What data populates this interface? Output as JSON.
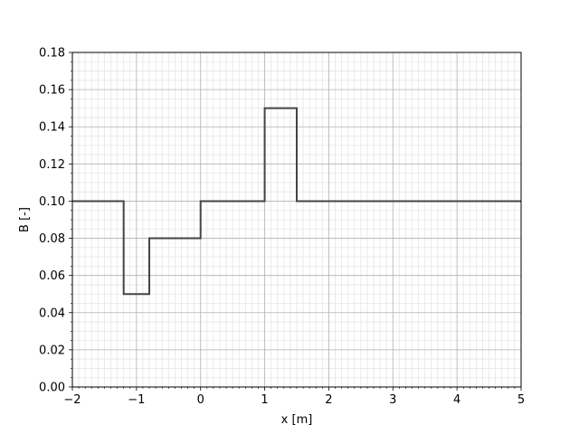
{
  "chart_data": {
    "type": "line",
    "title": "",
    "xlabel": "x [m]",
    "ylabel": "B [-]",
    "xlim": [
      -2,
      5
    ],
    "ylim": [
      0,
      0.18
    ],
    "grid": "major and minor",
    "xticks": [
      -2,
      -1,
      0,
      1,
      2,
      3,
      4,
      5
    ],
    "xtick_labels": [
      "−2",
      "−1",
      "0",
      "1",
      "2",
      "3",
      "4",
      "5"
    ],
    "yticks": [
      0,
      0.02,
      0.04,
      0.06,
      0.08,
      0.1,
      0.12,
      0.14,
      0.16,
      0.18
    ],
    "ytick_labels": [
      "0.00",
      "0.02",
      "0.04",
      "0.06",
      "0.08",
      "0.10",
      "0.12",
      "0.14",
      "0.16",
      "0.18"
    ],
    "x_minor_step": 0.1,
    "y_minor_step": 0.005,
    "line_color": "#444444",
    "series": [
      {
        "style": "step",
        "x": [
          -2,
          -1.2,
          -1.2,
          -0.8,
          -0.8,
          0,
          0,
          1,
          1,
          1.5,
          1.5,
          5
        ],
        "y": [
          0.1,
          0.1,
          0.05,
          0.05,
          0.08,
          0.08,
          0.1,
          0.1,
          0.15,
          0.15,
          0.1,
          0.1
        ]
      }
    ]
  }
}
